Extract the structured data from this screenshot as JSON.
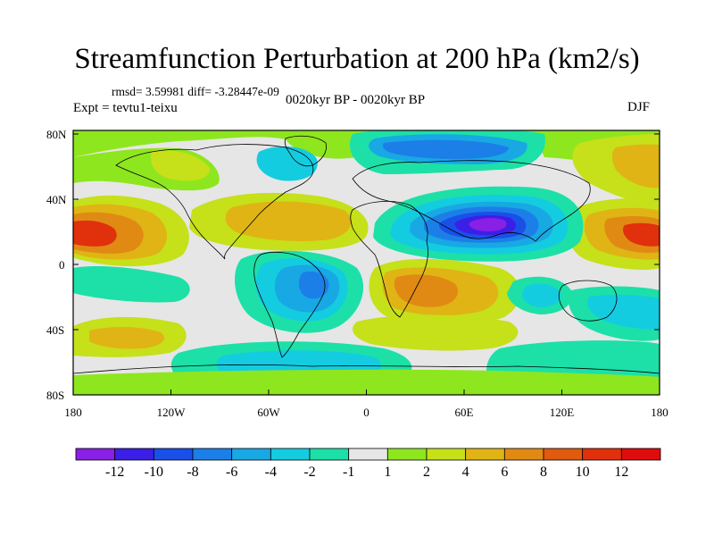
{
  "title": "Streamfunction Perturbation at 200 hPa (km2/s)",
  "stats": "rmsd= 3.59981 diff= -3.28447e-09",
  "experiment": "Expt = tevtu1-teixu",
  "period": "0020kyr BP - 0020kyr BP",
  "season": "DJF",
  "lat_ticks": [
    "80N",
    "40N",
    "0",
    "40S",
    "80S"
  ],
  "lon_ticks": [
    "180",
    "120W",
    "60W",
    "0",
    "60E",
    "120E",
    "180"
  ],
  "colorbar": {
    "labels": [
      "-12",
      "-10",
      "-8",
      "-6",
      "-4",
      "-2",
      "-1",
      "1",
      "2",
      "4",
      "6",
      "8",
      "10",
      "12"
    ],
    "colors": [
      "#8a1fe6",
      "#3c1fe6",
      "#1a4fe8",
      "#1c7fe8",
      "#18a8e4",
      "#14cce0",
      "#1ce0a8",
      "#e6e6e6",
      "#8ee61e",
      "#c6e01a",
      "#e0b414",
      "#e08a14",
      "#e05a10",
      "#e0300c",
      "#e00c0c"
    ]
  },
  "map_colors": {
    "neutral": "#e6e6e6",
    "green": "#8ee61e",
    "yellowgreen": "#c6e01a",
    "gold": "#e0b414",
    "orange": "#e08a14",
    "redorange": "#e05a10",
    "red": "#e0300c",
    "teal": "#1ce0a8",
    "cyan": "#14cce0",
    "sky": "#18a8e4",
    "blue": "#1c7fe8",
    "royal": "#1a4fe8",
    "indigo": "#3c1fe6",
    "purple": "#8a1fe6"
  }
}
